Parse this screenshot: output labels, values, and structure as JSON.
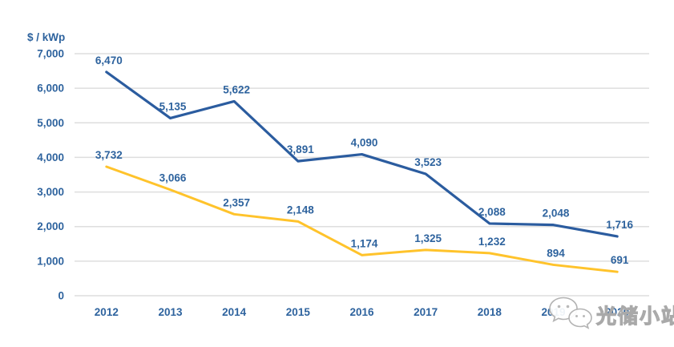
{
  "page": {
    "background": "#ffffff"
  },
  "chart_data": {
    "type": "line",
    "title": "",
    "unit_label": "$ / kWp",
    "categories": [
      "2012",
      "2013",
      "2014",
      "2015",
      "2016",
      "2017",
      "2018",
      "2019",
      "2020"
    ],
    "series": [
      {
        "name": "blue-series",
        "color": "#2B5C9F",
        "stroke_width": 3.2,
        "values": [
          6470,
          5135,
          5622,
          3891,
          4090,
          3523,
          2088,
          2048,
          1716
        ],
        "labels": [
          "6,470",
          "5,135",
          "5,622",
          "3,891",
          "4,090",
          "3,523",
          "2,088",
          "2,048",
          "1,716"
        ]
      },
      {
        "name": "yellow-series",
        "color": "#FFC32B",
        "stroke_width": 3,
        "values": [
          3732,
          3066,
          2357,
          2148,
          1174,
          1325,
          1232,
          894,
          691
        ],
        "labels": [
          "3,732",
          "3,066",
          "2,357",
          "2,148",
          "1,174",
          "1,325",
          "1,232",
          "894",
          "691"
        ]
      }
    ],
    "y_ticks": [
      {
        "value": 7000,
        "label": "7,000"
      },
      {
        "value": 6000,
        "label": "6,000"
      },
      {
        "value": 5000,
        "label": "5,000"
      },
      {
        "value": 4000,
        "label": "4,000"
      },
      {
        "value": 3000,
        "label": "3,000"
      },
      {
        "value": 2000,
        "label": "2,000"
      },
      {
        "value": 1000,
        "label": "1,000"
      },
      {
        "value": 0,
        "label": "0"
      }
    ],
    "ylim": [
      0,
      7000
    ],
    "grid": true,
    "legend_position": "none",
    "text_color": "#2E639E",
    "grid_color": "#DEDEDE"
  },
  "watermark": {
    "icon": "wechat-icon",
    "text": "光储小站",
    "stroke_color": "#A9A9A9",
    "fill_color": "#EDEDED"
  }
}
